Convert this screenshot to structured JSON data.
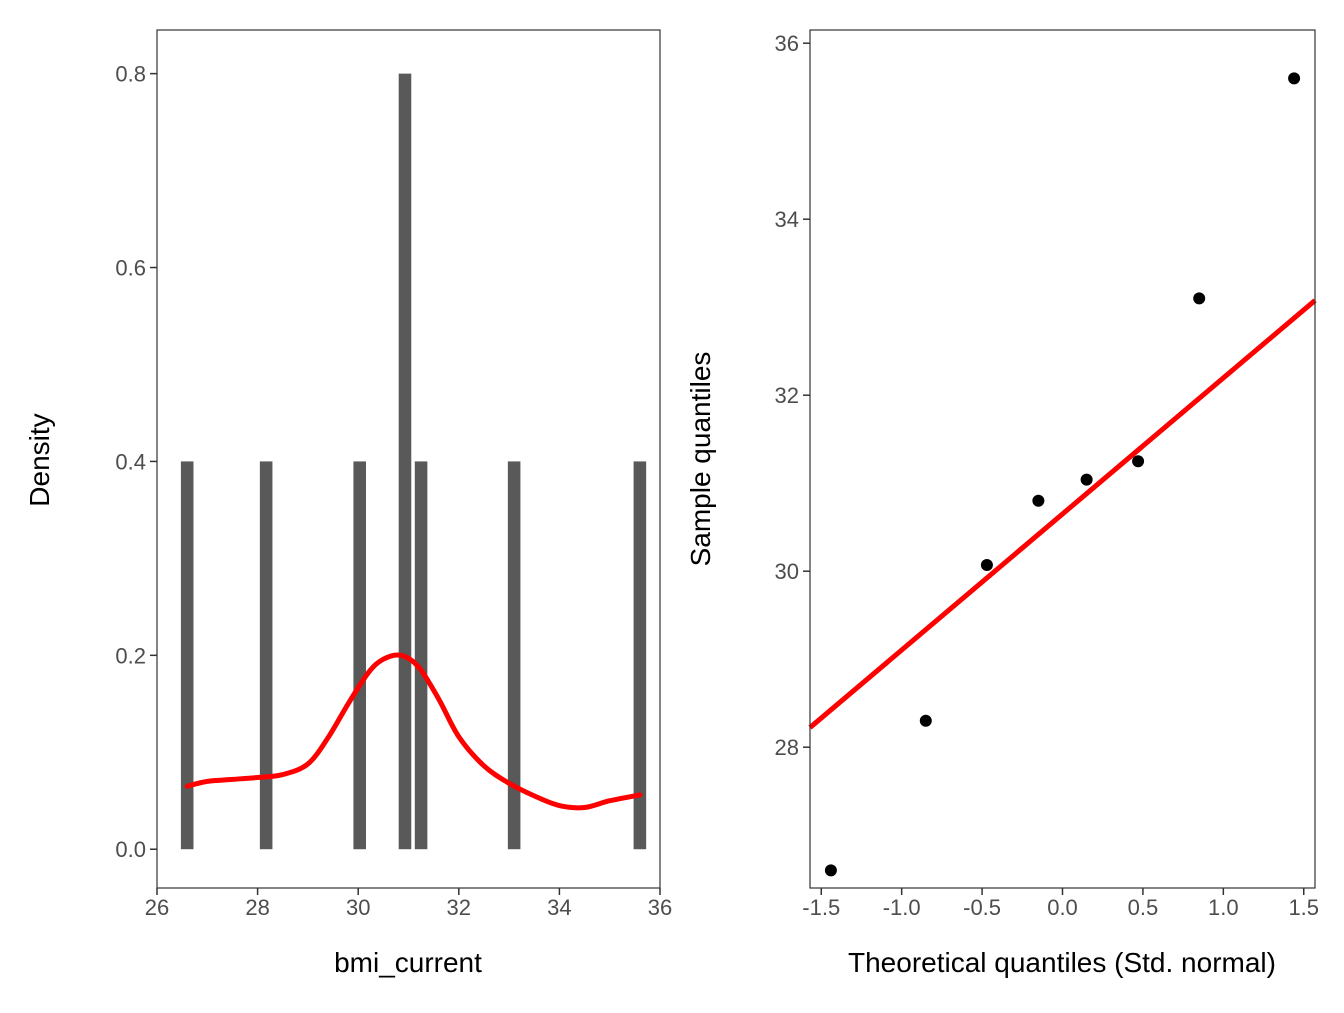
{
  "chart_data": [
    {
      "type": "histogram",
      "xlabel": "bmi_current",
      "ylabel": "Density",
      "xlim": [
        26,
        36
      ],
      "ylim": [
        -0.04,
        0.845
      ],
      "xticks": [
        26,
        28,
        30,
        32,
        34,
        36
      ],
      "yticks": [
        0.0,
        0.2,
        0.4,
        0.6,
        0.8
      ],
      "ytick_labels": [
        "0.0",
        "0.2",
        "0.4",
        "0.6",
        "0.8"
      ],
      "bar_width": 0.25,
      "bars": [
        {
          "x": 26.6,
          "value": 0.4
        },
        {
          "x": 28.17,
          "value": 0.4
        },
        {
          "x": 30.03,
          "value": 0.4
        },
        {
          "x": 30.93,
          "value": 0.8
        },
        {
          "x": 31.25,
          "value": 0.4
        },
        {
          "x": 33.1,
          "value": 0.4
        },
        {
          "x": 35.6,
          "value": 0.4
        }
      ],
      "density_curve": {
        "color": "#ff0000",
        "x": [
          26.6,
          27.0,
          27.5,
          28.0,
          28.5,
          29.0,
          29.4,
          29.8,
          30.2,
          30.5,
          30.85,
          31.2,
          31.6,
          32.0,
          32.5,
          33.0,
          33.5,
          34.0,
          34.5,
          35.0,
          35.6
        ],
        "y": [
          0.065,
          0.07,
          0.072,
          0.074,
          0.077,
          0.088,
          0.115,
          0.15,
          0.182,
          0.196,
          0.2,
          0.188,
          0.155,
          0.116,
          0.086,
          0.068,
          0.055,
          0.045,
          0.043,
          0.05,
          0.056
        ]
      },
      "bar_color": "#595959"
    },
    {
      "type": "scatter",
      "xlabel": "Theoretical quantiles (Std. normal)",
      "ylabel": "Sample quantiles",
      "xlim": [
        -1.57,
        1.57
      ],
      "ylim": [
        26.4,
        36.15
      ],
      "xticks": [
        -1.5,
        -1.0,
        -0.5,
        0.0,
        0.5,
        1.0,
        1.5
      ],
      "xtick_labels": [
        "-1.5",
        "-1.0",
        "-0.5",
        "0.0",
        "0.5",
        "1.0",
        "1.5"
      ],
      "yticks": [
        28,
        30,
        32,
        34,
        36
      ],
      "points": [
        {
          "x": -1.44,
          "y": 26.6
        },
        {
          "x": -0.85,
          "y": 28.3
        },
        {
          "x": -0.47,
          "y": 30.07
        },
        {
          "x": -0.15,
          "y": 30.8
        },
        {
          "x": 0.15,
          "y": 31.04
        },
        {
          "x": 0.47,
          "y": 31.25
        },
        {
          "x": 0.85,
          "y": 33.1
        },
        {
          "x": 1.44,
          "y": 35.6
        }
      ],
      "reference_line": {
        "color": "#ff0000",
        "intercept": 30.65,
        "slope": 1.546
      },
      "point_color": "#000000"
    }
  ]
}
